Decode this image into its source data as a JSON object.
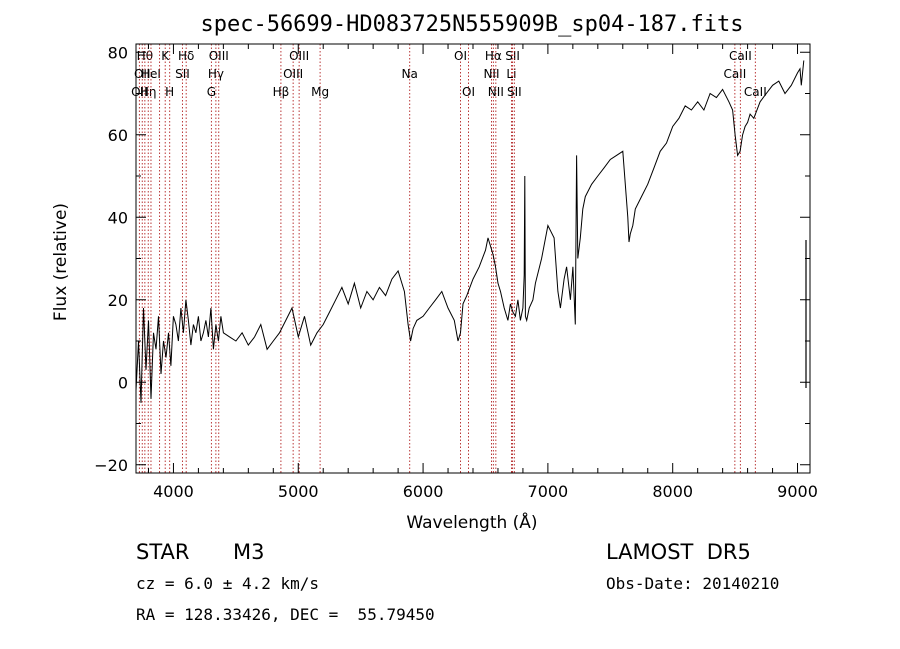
{
  "chart_data": {
    "type": "line",
    "title": "spec-56699-HD083725N555909B_sp04-187.fits",
    "xlabel": "Wavelength (Å)",
    "ylabel": "Flux (relative)",
    "xlim": [
      3700,
      9100
    ],
    "ylim": [
      -22,
      82
    ],
    "xticks": [
      4000,
      5000,
      6000,
      7000,
      8000,
      9000
    ],
    "yticks": [
      -20,
      0,
      20,
      40,
      60,
      80
    ],
    "grid": false,
    "legend": "none",
    "line_color": "#000000",
    "marker_color": "#b22222",
    "series": [
      {
        "x": [
          3700,
          3720,
          3740,
          3760,
          3780,
          3800,
          3820,
          3840,
          3860,
          3880,
          3900,
          3920,
          3940,
          3960,
          3980,
          4000,
          4020,
          4040,
          4060,
          4080,
          4100,
          4120,
          4140,
          4160,
          4180,
          4200,
          4220,
          4240,
          4260,
          4280,
          4300,
          4320,
          4340,
          4360,
          4380,
          4400,
          4450,
          4500,
          4550,
          4600,
          4650,
          4700,
          4750,
          4800,
          4850,
          4900,
          4950,
          5000,
          5050,
          5100,
          5150,
          5200,
          5250,
          5300,
          5350,
          5400,
          5450,
          5500,
          5550,
          5600,
          5650,
          5700,
          5750,
          5800,
          5850,
          5880,
          5900,
          5920,
          5950,
          6000,
          6050,
          6100,
          6150,
          6200,
          6250,
          6280,
          6300,
          6320,
          6350,
          6400,
          6450,
          6500,
          6520,
          6540,
          6560,
          6580,
          6600,
          6620,
          6650,
          6680,
          6700,
          6720,
          6740,
          6760,
          6780,
          6800,
          6810,
          6815,
          6820,
          6830,
          6850,
          6880,
          6900,
          6950,
          7000,
          7050,
          7080,
          7100,
          7130,
          7150,
          7180,
          7200,
          7220,
          7230,
          7240,
          7260,
          7280,
          7300,
          7350,
          7400,
          7450,
          7500,
          7550,
          7600,
          7620,
          7640,
          7650,
          7660,
          7680,
          7700,
          7750,
          7800,
          7850,
          7900,
          7950,
          8000,
          8050,
          8100,
          8150,
          8200,
          8250,
          8300,
          8350,
          8400,
          8450,
          8480,
          8500,
          8520,
          8540,
          8560,
          8580,
          8600,
          8620,
          8650,
          8700,
          8750,
          8800,
          8850,
          8900,
          8950,
          9000,
          9020,
          9030,
          9050
        ],
        "y": [
          -2,
          10,
          -5,
          18,
          3,
          15,
          -4,
          12,
          8,
          16,
          2,
          10,
          6,
          12,
          4,
          16,
          14,
          10,
          18,
          12,
          20,
          15,
          9,
          14,
          12,
          16,
          10,
          12,
          15,
          11,
          18,
          8,
          14,
          10,
          16,
          12,
          11,
          10,
          12,
          9,
          11,
          14,
          8,
          10,
          12,
          15,
          18,
          11,
          16,
          9,
          12,
          14,
          17,
          20,
          23,
          19,
          24,
          18,
          22,
          20,
          23,
          21,
          25,
          27,
          22,
          14,
          10,
          13,
          15,
          16,
          18,
          20,
          22,
          18,
          15,
          10,
          12,
          19,
          21,
          25,
          28,
          32,
          35,
          33,
          31,
          28,
          24,
          22,
          18,
          15,
          19,
          17,
          16,
          20,
          15,
          18,
          26,
          50,
          16,
          15,
          18,
          20,
          24,
          30,
          38,
          35,
          22,
          18,
          25,
          28,
          20,
          28,
          14,
          55,
          30,
          35,
          42,
          45,
          48,
          50,
          52,
          54,
          55,
          56,
          48,
          40,
          34,
          36,
          38,
          42,
          45,
          48,
          52,
          56,
          58,
          62,
          64,
          67,
          66,
          68,
          66,
          70,
          69,
          71,
          68,
          66,
          60,
          55,
          56,
          60,
          62,
          63,
          65,
          64,
          68,
          70,
          72,
          73,
          70,
          72,
          75,
          76,
          72,
          78
        ]
      }
    ],
    "line_markers": [
      {
        "x": 3727,
        "label": "OII",
        "row": 2
      },
      {
        "x": 3750,
        "label": "OII",
        "row": 1
      },
      {
        "x": 3771,
        "label": "Hθ",
        "row": 0
      },
      {
        "x": 3798,
        "label": "Hη",
        "row": 2
      },
      {
        "x": 3820,
        "label": "HeI",
        "row": 1
      },
      {
        "x": 3889,
        "label": "",
        "row": 0
      },
      {
        "x": 3934,
        "label": "K",
        "row": 0
      },
      {
        "x": 3970,
        "label": "H",
        "row": 2
      },
      {
        "x": 4072,
        "label": "SII",
        "row": 1
      },
      {
        "x": 4102,
        "label": "Hδ",
        "row": 0
      },
      {
        "x": 4304,
        "label": "G",
        "row": 2
      },
      {
        "x": 4340,
        "label": "Hγ",
        "row": 1
      },
      {
        "x": 4363,
        "label": "OIII",
        "row": 0
      },
      {
        "x": 4861,
        "label": "Hβ",
        "row": 2
      },
      {
        "x": 4959,
        "label": "OIII",
        "row": 1
      },
      {
        "x": 5007,
        "label": "OIII",
        "row": 0
      },
      {
        "x": 5175,
        "label": "Mg",
        "row": 2
      },
      {
        "x": 5893,
        "label": "Na",
        "row": 1
      },
      {
        "x": 6300,
        "label": "OI",
        "row": 0
      },
      {
        "x": 6364,
        "label": "OI",
        "row": 2
      },
      {
        "x": 6548,
        "label": "NII",
        "row": 1
      },
      {
        "x": 6563,
        "label": "Hα",
        "row": 0
      },
      {
        "x": 6583,
        "label": "NII",
        "row": 2
      },
      {
        "x": 6708,
        "label": "Li",
        "row": 1
      },
      {
        "x": 6717,
        "label": "SII",
        "row": 0
      },
      {
        "x": 6731,
        "label": "SII",
        "row": 2
      },
      {
        "x": 8498,
        "label": "CaII",
        "row": 1
      },
      {
        "x": 8542,
        "label": "CaII",
        "row": 0
      },
      {
        "x": 8662,
        "label": "CaII",
        "row": 2
      }
    ]
  },
  "info": {
    "object_class": "STAR",
    "subclass": "M3",
    "survey": "LAMOST  DR5",
    "cz": "cz = 6.0 ± 4.2 km/s",
    "obs_date": "Obs-Date: 20140210",
    "coords": "RA = 128.33426, DEC =  55.79450"
  }
}
